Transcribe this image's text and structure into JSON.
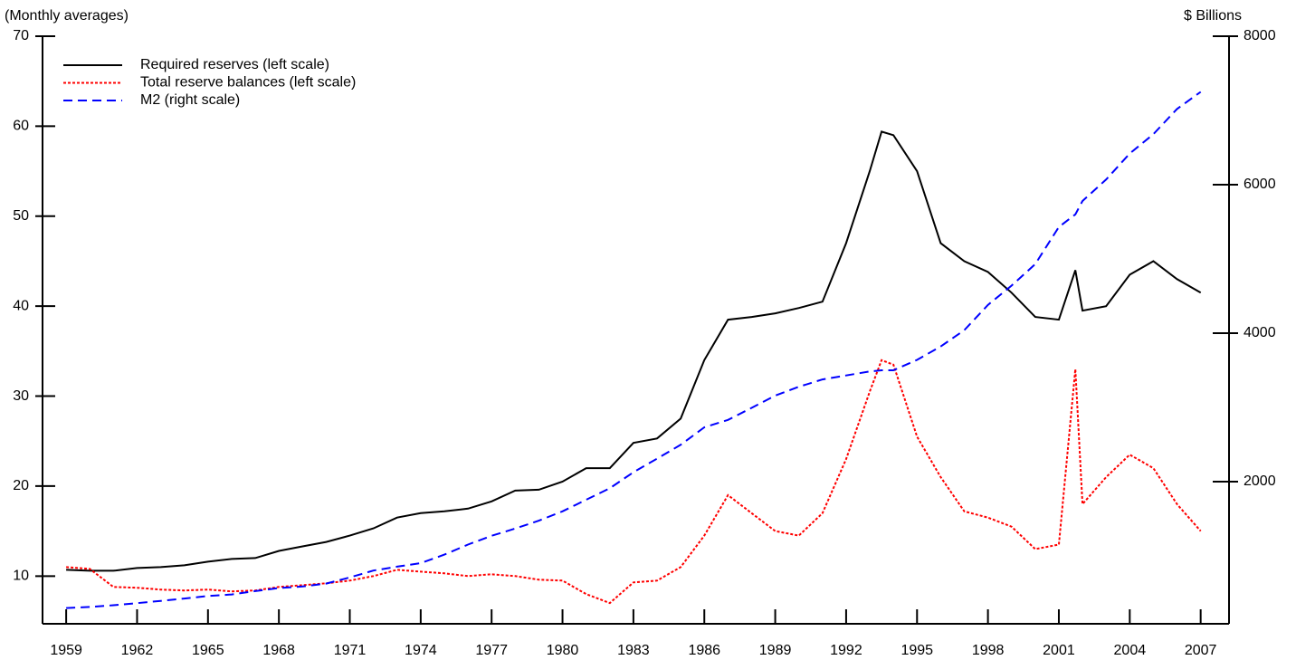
{
  "chart_data": {
    "type": "line",
    "ylabel": "(Monthly averages)",
    "y2label": "$ Billions",
    "x": [
      1959,
      1960,
      1961,
      1962,
      1963,
      1964,
      1965,
      1966,
      1967,
      1968,
      1969,
      1970,
      1971,
      1972,
      1973,
      1974,
      1975,
      1976,
      1977,
      1978,
      1979,
      1980,
      1981,
      1982,
      1983,
      1984,
      1985,
      1986,
      1987,
      1988,
      1989,
      1990,
      1991,
      1992,
      1993,
      1993.5,
      1994,
      1995,
      1996,
      1997,
      1998,
      1999,
      2000,
      2001,
      2001.7,
      2002,
      2003,
      2004,
      2005,
      2006,
      2007
    ],
    "series": [
      {
        "name": "Required reserves (left scale)",
        "color": "#000000",
        "style": "solid",
        "values": [
          10.7,
          10.6,
          10.6,
          10.9,
          11.0,
          11.2,
          11.6,
          11.9,
          12.0,
          12.8,
          13.3,
          13.8,
          14.5,
          15.3,
          16.5,
          17.0,
          17.2,
          17.5,
          18.3,
          19.5,
          19.6,
          20.5,
          22.0,
          22.0,
          24.8,
          25.3,
          27.5,
          34.0,
          38.5,
          38.8,
          39.2,
          39.8,
          40.5,
          47.0,
          55.0,
          59.4,
          59.0,
          55.0,
          47.0,
          45.0,
          43.8,
          41.5,
          38.8,
          38.5,
          44.0,
          39.5,
          40.0,
          43.5,
          45.0,
          43.0,
          41.5
        ]
      },
      {
        "name": "Total reserve balances (left scale)",
        "color": "#ff0000",
        "style": "dotted",
        "values": [
          11.0,
          10.8,
          8.8,
          8.7,
          8.5,
          8.4,
          8.5,
          8.3,
          8.4,
          8.8,
          9.0,
          9.2,
          9.5,
          10.0,
          10.7,
          10.5,
          10.3,
          10.0,
          10.2,
          10.0,
          9.6,
          9.5,
          8.0,
          7.0,
          9.3,
          9.5,
          11.0,
          14.5,
          19.0,
          17.0,
          15.0,
          14.5,
          17.0,
          23.0,
          30.5,
          34.0,
          33.5,
          25.5,
          21.0,
          17.2,
          16.5,
          15.5,
          13.0,
          13.5,
          33.0,
          18.0,
          21.0,
          23.5,
          22.0,
          18.0,
          15.0
        ]
      },
      {
        "name": "M2 (right scale)",
        "color": "#0000ff",
        "style": "dashed",
        "axis": "y2",
        "values": [
          297,
          312,
          335,
          363,
          393,
          425,
          459,
          480,
          525,
          567,
          588,
          627,
          710,
          802,
          855,
          902,
          1017,
          1152,
          1271,
          1368,
          1474,
          1600,
          1756,
          1911,
          2127,
          2310,
          2496,
          2732,
          2831,
          2994,
          3158,
          3278,
          3377,
          3430,
          3484,
          3500,
          3500,
          3640,
          3820,
          4040,
          4380,
          4640,
          4930,
          5430,
          5600,
          5780,
          6070,
          6420,
          6680,
          7020,
          7250
        ]
      }
    ],
    "xlim": [
      1958,
      2008.2
    ],
    "xticks": [
      1959,
      1962,
      1965,
      1968,
      1971,
      1974,
      1977,
      1980,
      1983,
      1986,
      1989,
      1992,
      1995,
      1998,
      2001,
      2004,
      2007
    ],
    "ylim": [
      4.7,
      70
    ],
    "yticks": [
      10,
      20,
      30,
      40,
      50,
      60,
      70
    ],
    "y2lim": [
      85,
      8000
    ],
    "y2ticks": [
      2000,
      4000,
      6000,
      8000
    ],
    "legend": "top-left"
  }
}
